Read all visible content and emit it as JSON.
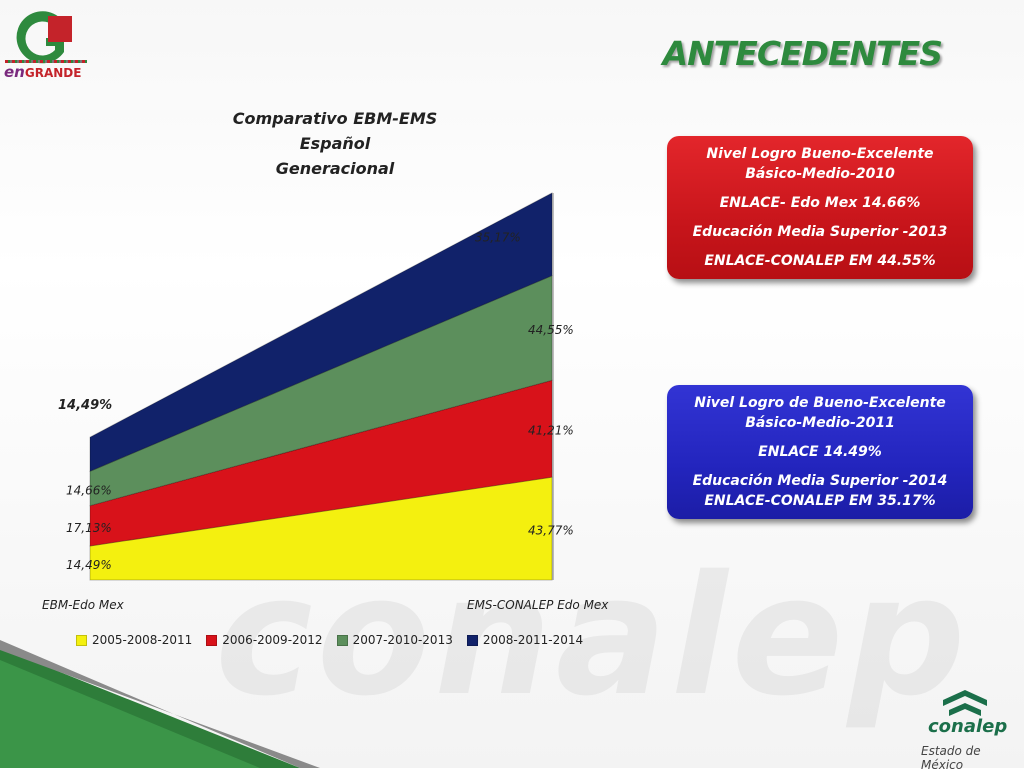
{
  "slide": {
    "title": "ANTECEDENTES",
    "watermark": "conalep"
  },
  "logo_left": {
    "letter": "G",
    "word_en": "en",
    "word_grande": "GRANDE"
  },
  "logo_right": {
    "name": "conalep",
    "subtitle": "Estado de México"
  },
  "colors": {
    "title_green": "#2e8a3e",
    "yellow": "#f4f00f",
    "red": "#d8121a",
    "green": "#5c8f5c",
    "navy": "#11226a",
    "box_red": "#d71c22",
    "box_blue": "#2628c4"
  },
  "chart_title_lines": [
    "Comparativo EBM-EMS",
    "Español",
    "Generacional"
  ],
  "chart_data": {
    "type": "area",
    "stacked": true,
    "title": "Comparativo EBM-EMS Español Generacional",
    "categories": [
      "EBM-Edo Mex",
      "EMS-CONALEP  Edo Mex"
    ],
    "series": [
      {
        "name": "2005-2008-2011",
        "values": [
          14.49,
          43.77
        ],
        "labels": [
          "14,49%",
          "43,77%"
        ],
        "color": "#f4f00f"
      },
      {
        "name": "2006-2009-2012",
        "values": [
          17.13,
          41.21
        ],
        "labels": [
          "17,13%",
          "41,21%"
        ],
        "color": "#d8121a"
      },
      {
        "name": "2007-2010-2013",
        "values": [
          14.66,
          44.55
        ],
        "labels": [
          "14,66%",
          "44,55%"
        ],
        "color": "#5c8f5c"
      },
      {
        "name": "2008-2011-2014",
        "values": [
          14.49,
          35.17
        ],
        "labels": [
          "14,49%",
          "35,17%"
        ],
        "color": "#11226a"
      }
    ],
    "legend_position": "bottom",
    "grid": false
  },
  "box_red": {
    "line1": "Nivel Logro Bueno-Excelente",
    "line2": "Básico-Medio-2010",
    "line3": "ENLACE- Edo Mex  14.66%",
    "line4": "Educación Media Superior -2013",
    "line5": "ENLACE-CONALEP EM 44.55%"
  },
  "box_blue": {
    "line1": "Nivel Logro de Bueno-Excelente",
    "line2": "Básico-Medio-2011",
    "line3": "ENLACE 14.49%",
    "line4": "Educación Media Superior -2014",
    "line5": "ENLACE-CONALEP EM 35.17%"
  }
}
